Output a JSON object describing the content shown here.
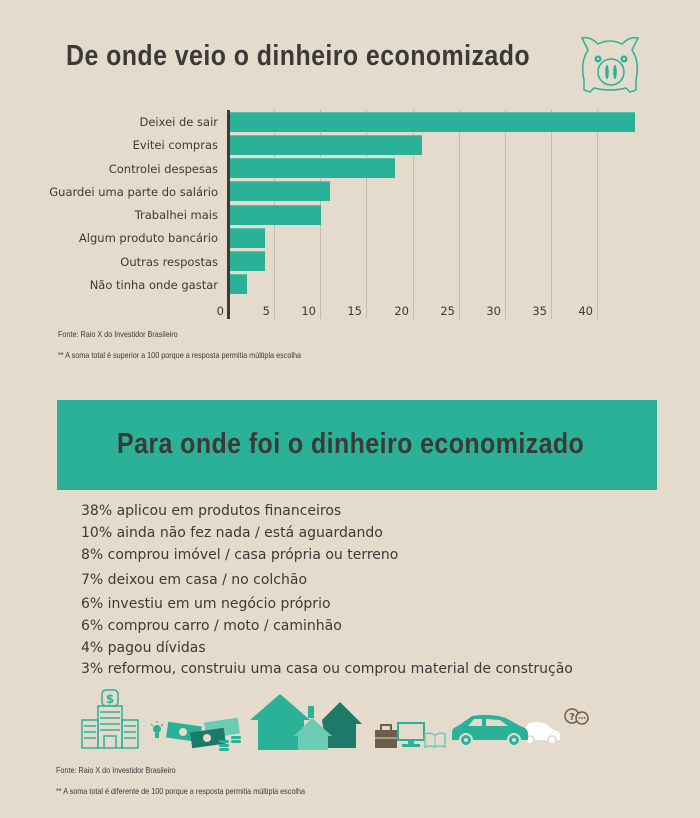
{
  "section1": {
    "title": "De onde veio o dinheiro economizado",
    "icon": "piggy-bank-icon",
    "source": "Fonte: Raio X do Investidor Brasileiro",
    "footnote": "** A soma total é superior a 100 porque a resposta permitia múltipla escolha"
  },
  "chart_data": {
    "type": "bar",
    "orientation": "horizontal",
    "title": "De onde veio o dinheiro economizado",
    "categories": [
      "Deixei de sair",
      "Evitei compras",
      "Controlei despesas",
      "Guardei uma parte do salário",
      "Trabalhei mais",
      "Algum produto bancário",
      "Outras respostas",
      "Não tinha onde gastar"
    ],
    "values": [
      44,
      21,
      18,
      11,
      10,
      4,
      4,
      2
    ],
    "xlabel": "",
    "ylabel": "",
    "xlim": [
      0,
      45
    ],
    "ticks": [
      "0",
      "5",
      "10",
      "15",
      "20",
      "25",
      "30",
      "35",
      "40"
    ],
    "grid": true,
    "color": "#2bb197"
  },
  "section2": {
    "title": "Para onde foi o dinheiro economizado",
    "items": [
      "38% aplicou em produtos financeiros",
      "10% ainda não fez nada / está aguardando",
      "8% comprou imóvel / casa própria ou terreno",
      "7% deixou em casa / no colchão",
      "6% investiu em um negócio próprio",
      "6% comprou carro / moto / caminhão",
      "4% pagou dívidas",
      "3% reformou, construiu uma casa ou comprou material de construção"
    ],
    "icons": [
      "bank-building-icon",
      "lightbulb-icon",
      "money-bills-icon",
      "houses-icon",
      "briefcase-icon",
      "computer-icon",
      "book-icon",
      "car-icon",
      "question-speech-icon"
    ],
    "source": "Fonte: Raio X do Investidor Brasileiro",
    "footnote": "** A soma total é diferente de 100 porque a resposta permitia múltipla escolha"
  },
  "colors": {
    "background": "#e4dbcd",
    "accent": "#2bb197",
    "text": "#3b3a36",
    "dark_green": "#1e7a68",
    "light_green": "#6ccbb5",
    "brown": "#6e5d48"
  }
}
